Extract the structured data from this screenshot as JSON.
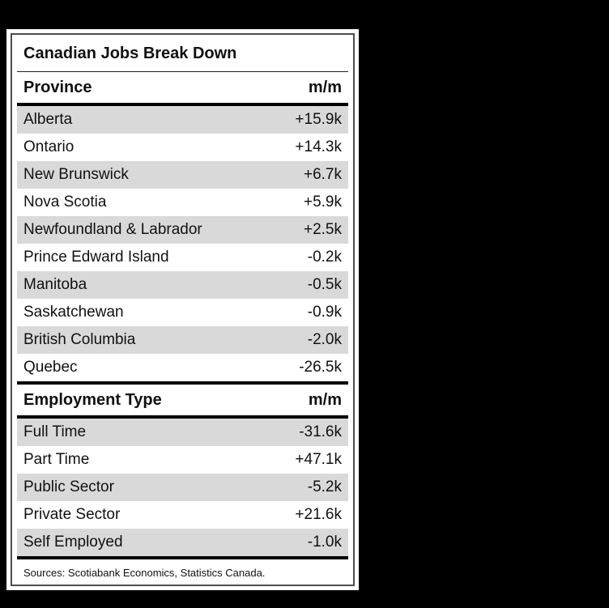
{
  "colors": {
    "page_background": "#000000",
    "card_background": "#ffffff",
    "card_border": "#4d4d4d",
    "row_stripe": "#d9d9d9",
    "text": "#111111"
  },
  "card": {
    "title": "Canadian Jobs Break Down",
    "sources": "Sources: Scotiabank Economics, Statistics Canada.",
    "sections": [
      {
        "header": {
          "label": "Province",
          "value": "m/m"
        },
        "rows": [
          {
            "label": "Alberta",
            "value": "+15.9k"
          },
          {
            "label": "Ontario",
            "value": "+14.3k"
          },
          {
            "label": "New Brunswick",
            "value": "+6.7k"
          },
          {
            "label": "Nova Scotia",
            "value": "+5.9k"
          },
          {
            "label": "Newfoundland & Labrador",
            "value": "+2.5k"
          },
          {
            "label": "Prince Edward Island",
            "value": "-0.2k"
          },
          {
            "label": "Manitoba",
            "value": "-0.5k"
          },
          {
            "label": "Saskatchewan",
            "value": "-0.9k"
          },
          {
            "label": "British Columbia",
            "value": "-2.0k"
          },
          {
            "label": "Quebec",
            "value": "-26.5k"
          }
        ]
      },
      {
        "header": {
          "label": "Employment Type",
          "value": "m/m"
        },
        "rows": [
          {
            "label": "Full Time",
            "value": "-31.6k"
          },
          {
            "label": "Part Time",
            "value": "+47.1k"
          },
          {
            "label": "Public Sector",
            "value": "-5.2k"
          },
          {
            "label": "Private Sector",
            "value": "+21.6k"
          },
          {
            "label": "Self Employed",
            "value": "-1.0k"
          }
        ]
      }
    ]
  },
  "chart_data": {
    "type": "table",
    "title": "Canadian Jobs Break Down",
    "tables": [
      {
        "columns": [
          "Province",
          "m/m"
        ],
        "rows": [
          [
            "Alberta",
            "+15.9k"
          ],
          [
            "Ontario",
            "+14.3k"
          ],
          [
            "New Brunswick",
            "+6.7k"
          ],
          [
            "Nova Scotia",
            "+5.9k"
          ],
          [
            "Newfoundland & Labrador",
            "+2.5k"
          ],
          [
            "Prince Edward Island",
            "-0.2k"
          ],
          [
            "Manitoba",
            "-0.5k"
          ],
          [
            "Saskatchewan",
            "-0.9k"
          ],
          [
            "British Columbia",
            "-2.0k"
          ],
          [
            "Quebec",
            "-26.5k"
          ]
        ],
        "values_thousands": [
          15.9,
          14.3,
          6.7,
          5.9,
          2.5,
          -0.2,
          -0.5,
          -0.9,
          -2.0,
          -26.5
        ]
      },
      {
        "columns": [
          "Employment Type",
          "m/m"
        ],
        "rows": [
          [
            "Full Time",
            "-31.6k"
          ],
          [
            "Part Time",
            "+47.1k"
          ],
          [
            "Public Sector",
            "-5.2k"
          ],
          [
            "Private Sector",
            "+21.6k"
          ],
          [
            "Self Employed",
            "-1.0k"
          ]
        ],
        "values_thousands": [
          -31.6,
          47.1,
          -5.2,
          21.6,
          -1.0
        ]
      }
    ],
    "source": "Sources: Scotiabank Economics, Statistics Canada."
  }
}
